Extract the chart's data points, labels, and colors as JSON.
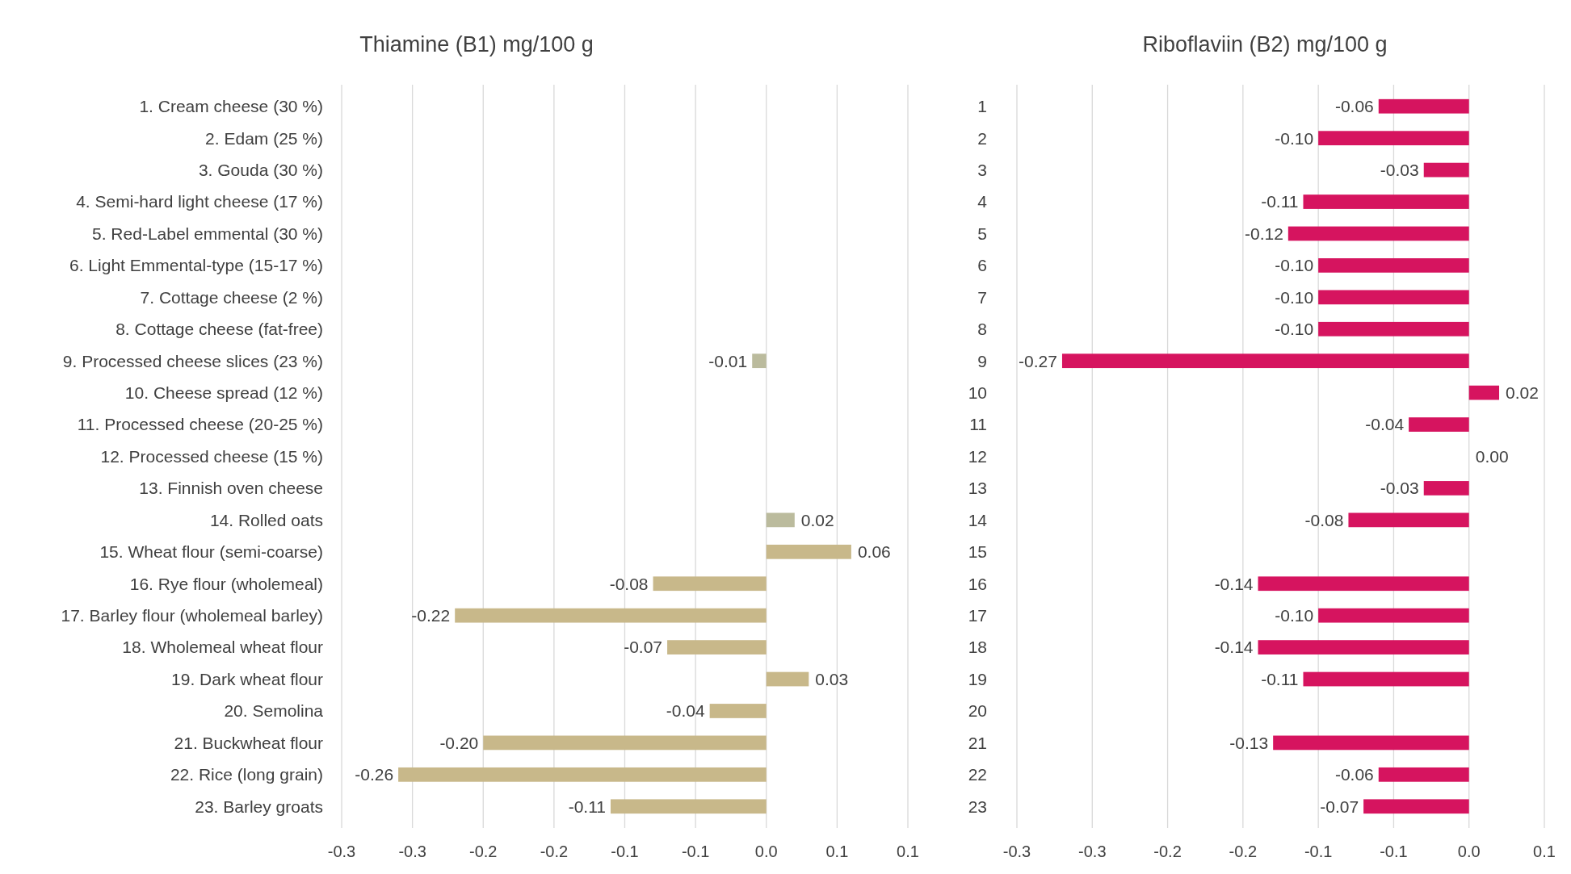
{
  "chart_data": [
    {
      "type": "bar",
      "orientation": "horizontal",
      "title": "Thiamine (B1) mg/100 g",
      "categories": [
        "1. Cream cheese (30 %)",
        "2. Edam (25 %)",
        "3. Gouda (30 %)",
        "4. Semi-hard light cheese (17 %)",
        "5. Red-Label emmental (30 %)",
        "6. Light Emmental-type (15-17 %)",
        "7. Cottage cheese (2 %)",
        "8. Cottage cheese (fat-free)",
        "9. Processed cheese slices (23 %)",
        "10. Cheese spread (12 %)",
        "11. Processed cheese (20-25 %)",
        "12. Processed cheese (15 %)",
        "13. Finnish oven cheese",
        "14. Rolled oats",
        "15. Wheat flour (semi-coarse)",
        "16. Rye flour (wholemeal)",
        "17. Barley flour (wholemeal barley)",
        "18. Wholemeal wheat flour",
        "19. Dark wheat flour",
        "20. Semolina",
        "21. Buckwheat flour",
        "22. Rice (long grain)",
        "23. Barley groats"
      ],
      "values": [
        null,
        null,
        null,
        null,
        null,
        null,
        null,
        null,
        -0.01,
        null,
        null,
        null,
        null,
        0.02,
        0.06,
        -0.08,
        -0.22,
        -0.07,
        0.03,
        -0.04,
        -0.2,
        -0.26,
        -0.11
      ],
      "value_labels": [
        null,
        null,
        null,
        null,
        null,
        null,
        null,
        null,
        "-0.01",
        null,
        null,
        null,
        null,
        "0.02",
        "0.06",
        "-0.08",
        "-0.22",
        "-0.07",
        "0.03",
        "-0.04",
        "-0.20",
        "-0.26",
        "-0.11"
      ],
      "colors": [
        null,
        null,
        null,
        null,
        null,
        null,
        null,
        null,
        "#bbbb9d",
        null,
        null,
        null,
        null,
        "#bbbb9d",
        "#c8b88a",
        "#c8b88a",
        "#c8b88a",
        "#c8b88a",
        "#c8b88a",
        "#c8b88a",
        "#c8b88a",
        "#c8b88a",
        "#c8b88a"
      ],
      "xlim": [
        -0.3,
        0.1
      ],
      "xticks": [
        {
          "value": -0.3,
          "label": "-0.3"
        },
        {
          "value": -0.25,
          "label": "-0.3"
        },
        {
          "value": -0.2,
          "label": "-0.2"
        },
        {
          "value": -0.15,
          "label": "-0.2"
        },
        {
          "value": -0.1,
          "label": "-0.1"
        },
        {
          "value": -0.05,
          "label": "-0.1"
        },
        {
          "value": 0,
          "label": "0.0"
        },
        {
          "value": 0.05,
          "label": "0.1"
        },
        {
          "value": 0.1,
          "label": "0.1"
        }
      ],
      "grid": "x"
    },
    {
      "type": "bar",
      "orientation": "horizontal",
      "title": "Riboflaviin (B2) mg/100 g",
      "categories": [
        "1",
        "2",
        "3",
        "4",
        "5",
        "6",
        "7",
        "8",
        "9",
        "10",
        "11",
        "12",
        "13",
        "14",
        "15",
        "16",
        "17",
        "18",
        "19",
        "20",
        "21",
        "22",
        "23"
      ],
      "values": [
        -0.06,
        -0.1,
        -0.03,
        -0.11,
        -0.12,
        -0.1,
        -0.1,
        -0.1,
        -0.27,
        0.02,
        -0.04,
        0.0,
        -0.03,
        -0.08,
        null,
        -0.14,
        -0.1,
        -0.14,
        -0.11,
        null,
        -0.13,
        -0.06,
        -0.07
      ],
      "value_labels": [
        "-0.06",
        "-0.10",
        "-0.03",
        "-0.11",
        "-0.12",
        "-0.10",
        "-0.10",
        "-0.10",
        "-0.27",
        "0.02",
        "-0.04",
        "0.00",
        "-0.03",
        "-0.08",
        null,
        "-0.14",
        "-0.10",
        "-0.14",
        "-0.11",
        null,
        "-0.13",
        "-0.06",
        "-0.07"
      ],
      "color": "#d6145f",
      "xlim": [
        -0.3,
        0.05
      ],
      "xticks": [
        {
          "value": -0.3,
          "label": "-0.3"
        },
        {
          "value": -0.25,
          "label": "-0.3"
        },
        {
          "value": -0.2,
          "label": "-0.2"
        },
        {
          "value": -0.15,
          "label": "-0.2"
        },
        {
          "value": -0.1,
          "label": "-0.1"
        },
        {
          "value": -0.05,
          "label": "-0.1"
        },
        {
          "value": 0,
          "label": "0.0"
        },
        {
          "value": 0.05,
          "label": "0.1"
        }
      ],
      "grid": "x"
    }
  ]
}
